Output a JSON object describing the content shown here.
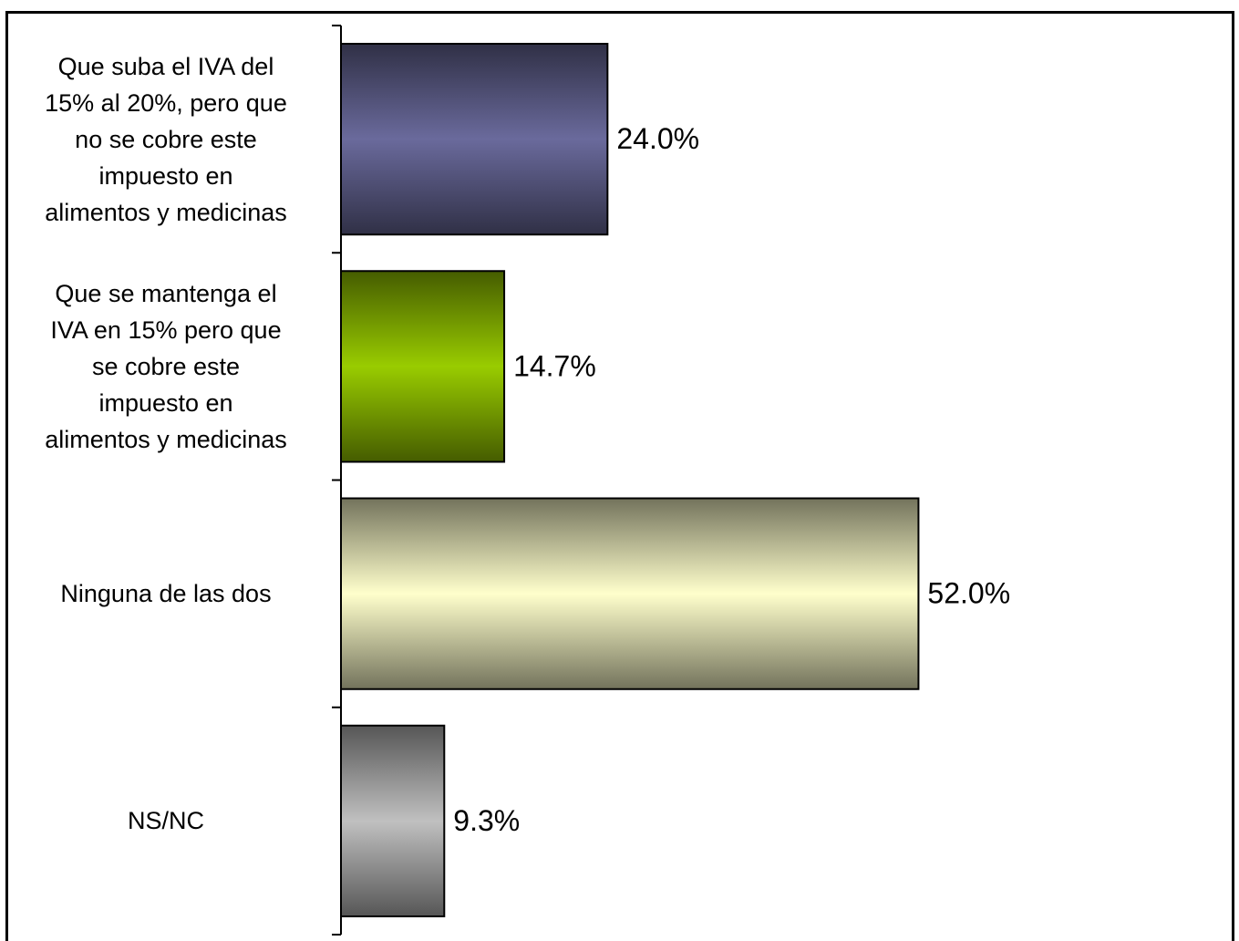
{
  "chart_data": {
    "type": "barh",
    "categories": [
      "Que suba el IVA del\n15% al 20%, pero que\nno se cobre este\nimpuesto en\nalimentos y medicinas",
      "Que se mantenga el\nIVA en 15% pero que\nse cobre este\nimpuesto en\nalimentos y medicinas",
      "Ninguna de las dos",
      "NS/NC"
    ],
    "values": [
      24.0,
      14.7,
      52.0,
      9.3
    ],
    "value_labels": [
      "24.0%",
      "14.7%",
      "52.0%",
      "9.3%"
    ],
    "colors": [
      "#6a6a9c",
      "#99cc00",
      "#ffffcc",
      "#c0c0c0"
    ],
    "xlim": [
      0,
      80
    ]
  }
}
